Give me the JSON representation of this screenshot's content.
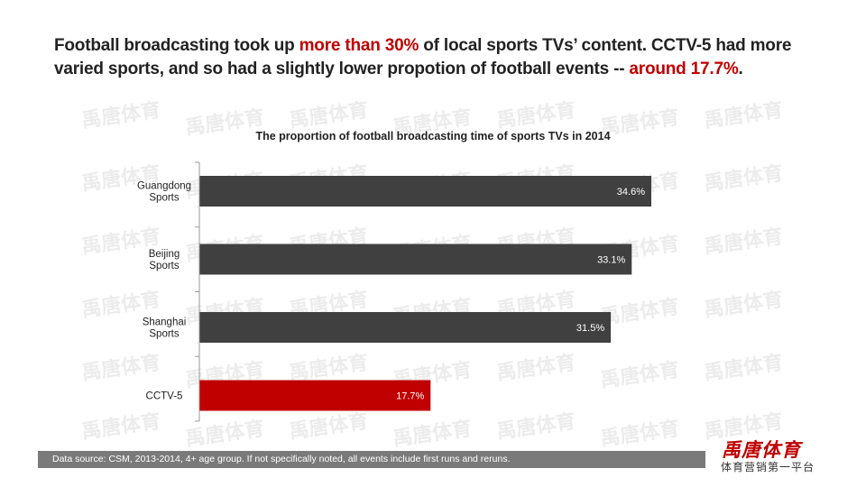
{
  "headline": {
    "part1": "Football broadcasting took up ",
    "highlight1": "more than 30%",
    "part2": " of local sports TVs’ content. CCTV-5 had more varied sports, and so had a slightly lower propotion of football events -- ",
    "highlight2": "around 17.7%",
    "part3": "."
  },
  "watermark_text": "禹唐体育",
  "colors": {
    "bar_default": "#404040",
    "bar_highlight": "#c00000",
    "accent": "#c00000"
  },
  "chart_data": {
    "type": "bar",
    "orientation": "horizontal",
    "title": "The proportion of football broadcasting time of sports TVs in 2014",
    "categories": [
      [
        "Guangdong",
        "Sports"
      ],
      [
        "Beijing",
        "Sports"
      ],
      [
        "Shanghai",
        "Sports"
      ],
      [
        "CCTV-5"
      ]
    ],
    "values": [
      34.6,
      33.1,
      31.5,
      17.7
    ],
    "value_labels": [
      "34.6%",
      "33.1%",
      "31.5%",
      "17.7%"
    ],
    "highlight_index": 3,
    "xlim": [
      0,
      40
    ],
    "grid": false,
    "legend": "none"
  },
  "footer": {
    "source": "Data source: CSM, 2013-2014, 4+ age group. If not specifically noted, all events include first runs and reruns."
  },
  "logo": {
    "name": "禹唐体育",
    "tagline": "体育营销第一平台"
  }
}
